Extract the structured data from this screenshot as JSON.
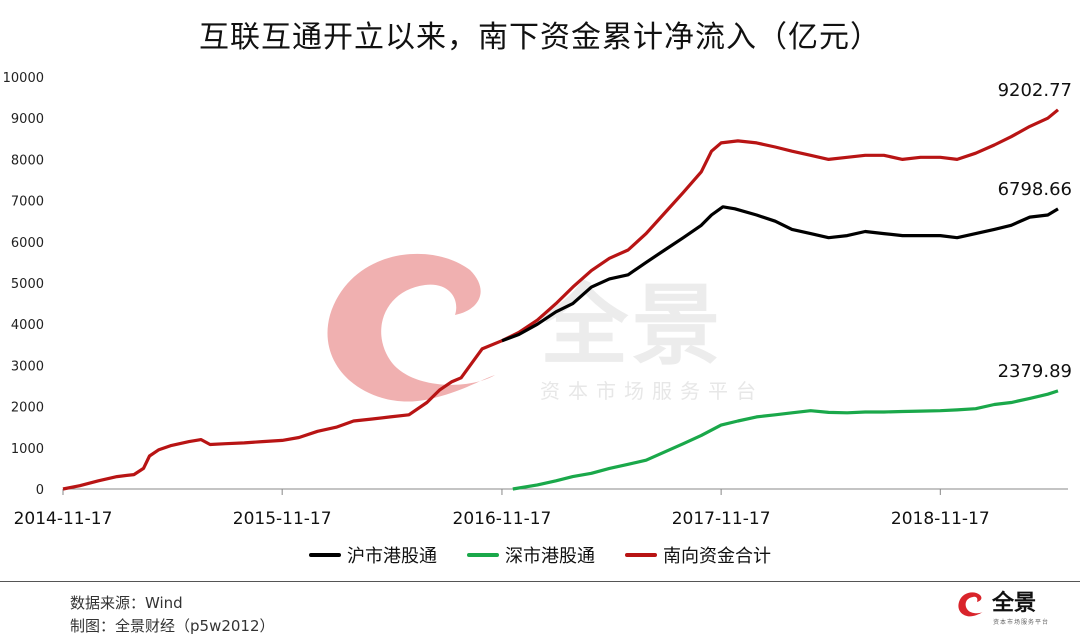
{
  "title": "互联互通开立以来，南下资金累计净流入（亿元）",
  "watermark": {
    "brand": "全景",
    "tagline": "资本市场服务平台"
  },
  "footer": {
    "source": "数据来源：Wind",
    "made_by": "制图：全景财经（p5w2012）"
  },
  "logo": {
    "text": "全景",
    "sub": "资本市场服务平台",
    "color": "#d9242b"
  },
  "chart_data": {
    "type": "line",
    "title": "互联互通开立以来，南下资金累计净流入（亿元）",
    "x_axis_type": "date",
    "x_ticks": [
      "2014-11-17",
      "2015-11-17",
      "2016-11-17",
      "2017-11-17",
      "2018-11-17"
    ],
    "ylim": [
      0,
      10000
    ],
    "y_ticks": [
      0,
      1000,
      2000,
      3000,
      4000,
      5000,
      6000,
      7000,
      8000,
      9000,
      10000
    ],
    "grid": false,
    "legend_position": "bottom",
    "end_labels": [
      "9202.77",
      "6798.66",
      "2379.89"
    ],
    "series": [
      {
        "name": "沪市港股通",
        "color": "#000000",
        "points": [
          [
            "2016-11-17",
            3600
          ],
          [
            "2016-12-15",
            3750
          ],
          [
            "2017-01-15",
            4000
          ],
          [
            "2017-02-15",
            4300
          ],
          [
            "2017-03-15",
            4500
          ],
          [
            "2017-04-15",
            4900
          ],
          [
            "2017-05-15",
            5100
          ],
          [
            "2017-06-15",
            5200
          ],
          [
            "2017-07-15",
            5500
          ],
          [
            "2017-08-15",
            5800
          ],
          [
            "2017-09-15",
            6100
          ],
          [
            "2017-10-15",
            6400
          ],
          [
            "2017-11-01",
            6650
          ],
          [
            "2017-11-20",
            6850
          ],
          [
            "2017-12-10",
            6800
          ],
          [
            "2018-01-15",
            6650
          ],
          [
            "2018-02-15",
            6500
          ],
          [
            "2018-03-15",
            6300
          ],
          [
            "2018-04-15",
            6200
          ],
          [
            "2018-05-15",
            6100
          ],
          [
            "2018-06-15",
            6150
          ],
          [
            "2018-07-15",
            6250
          ],
          [
            "2018-08-15",
            6200
          ],
          [
            "2018-09-15",
            6150
          ],
          [
            "2018-10-15",
            6150
          ],
          [
            "2018-11-17",
            6150
          ],
          [
            "2018-12-15",
            6100
          ],
          [
            "2019-01-15",
            6200
          ],
          [
            "2019-02-15",
            6300
          ],
          [
            "2019-03-15",
            6400
          ],
          [
            "2019-04-15",
            6600
          ],
          [
            "2019-05-15",
            6650
          ],
          [
            "2019-06-01",
            6798.66
          ]
        ]
      },
      {
        "name": "深市港股通",
        "color": "#1aa84a",
        "points": [
          [
            "2016-12-05",
            0
          ],
          [
            "2017-01-15",
            100
          ],
          [
            "2017-02-15",
            200
          ],
          [
            "2017-03-15",
            300
          ],
          [
            "2017-04-15",
            380
          ],
          [
            "2017-05-15",
            500
          ],
          [
            "2017-06-15",
            600
          ],
          [
            "2017-07-15",
            700
          ],
          [
            "2017-08-15",
            900
          ],
          [
            "2017-09-15",
            1100
          ],
          [
            "2017-10-15",
            1300
          ],
          [
            "2017-11-17",
            1550
          ],
          [
            "2017-12-15",
            1650
          ],
          [
            "2018-01-15",
            1750
          ],
          [
            "2018-02-15",
            1800
          ],
          [
            "2018-03-15",
            1850
          ],
          [
            "2018-04-15",
            1900
          ],
          [
            "2018-05-15",
            1860
          ],
          [
            "2018-06-15",
            1850
          ],
          [
            "2018-07-15",
            1870
          ],
          [
            "2018-08-15",
            1870
          ],
          [
            "2018-09-15",
            1880
          ],
          [
            "2018-10-15",
            1890
          ],
          [
            "2018-11-17",
            1900
          ],
          [
            "2018-12-15",
            1920
          ],
          [
            "2019-01-15",
            1950
          ],
          [
            "2019-02-15",
            2050
          ],
          [
            "2019-03-15",
            2100
          ],
          [
            "2019-04-15",
            2200
          ],
          [
            "2019-05-15",
            2300
          ],
          [
            "2019-06-01",
            2379.89
          ]
        ]
      },
      {
        "name": "南向资金合计",
        "color": "#b81414",
        "points": [
          [
            "2014-11-17",
            0
          ],
          [
            "2014-12-15",
            80
          ],
          [
            "2015-01-15",
            200
          ],
          [
            "2015-02-15",
            300
          ],
          [
            "2015-03-15",
            350
          ],
          [
            "2015-03-31",
            500
          ],
          [
            "2015-04-10",
            800
          ],
          [
            "2015-04-25",
            950
          ],
          [
            "2015-05-15",
            1050
          ],
          [
            "2015-06-15",
            1150
          ],
          [
            "2015-07-05",
            1200
          ],
          [
            "2015-07-20",
            1080
          ],
          [
            "2015-08-15",
            1100
          ],
          [
            "2015-09-15",
            1120
          ],
          [
            "2015-10-15",
            1150
          ],
          [
            "2015-11-17",
            1180
          ],
          [
            "2015-12-15",
            1250
          ],
          [
            "2016-01-15",
            1400
          ],
          [
            "2016-02-15",
            1500
          ],
          [
            "2016-03-15",
            1650
          ],
          [
            "2016-04-15",
            1700
          ],
          [
            "2016-05-15",
            1750
          ],
          [
            "2016-06-15",
            1800
          ],
          [
            "2016-07-15",
            2100
          ],
          [
            "2016-08-05",
            2400
          ],
          [
            "2016-08-25",
            2600
          ],
          [
            "2016-09-10",
            2700
          ],
          [
            "2016-09-25",
            3000
          ],
          [
            "2016-10-15",
            3400
          ],
          [
            "2016-11-17",
            3600
          ],
          [
            "2016-12-15",
            3800
          ],
          [
            "2017-01-15",
            4100
          ],
          [
            "2017-02-15",
            4500
          ],
          [
            "2017-03-15",
            4900
          ],
          [
            "2017-04-15",
            5300
          ],
          [
            "2017-05-15",
            5600
          ],
          [
            "2017-06-15",
            5800
          ],
          [
            "2017-07-15",
            6200
          ],
          [
            "2017-08-15",
            6700
          ],
          [
            "2017-09-15",
            7200
          ],
          [
            "2017-10-15",
            7700
          ],
          [
            "2017-11-01",
            8200
          ],
          [
            "2017-11-17",
            8400
          ],
          [
            "2017-12-15",
            8450
          ],
          [
            "2018-01-15",
            8400
          ],
          [
            "2018-02-15",
            8300
          ],
          [
            "2018-03-15",
            8200
          ],
          [
            "2018-04-15",
            8100
          ],
          [
            "2018-05-15",
            8000
          ],
          [
            "2018-06-15",
            8050
          ],
          [
            "2018-07-15",
            8100
          ],
          [
            "2018-08-15",
            8100
          ],
          [
            "2018-09-15",
            8000
          ],
          [
            "2018-10-15",
            8050
          ],
          [
            "2018-11-17",
            8050
          ],
          [
            "2018-12-15",
            8000
          ],
          [
            "2019-01-15",
            8150
          ],
          [
            "2019-02-15",
            8350
          ],
          [
            "2019-03-15",
            8550
          ],
          [
            "2019-04-15",
            8800
          ],
          [
            "2019-05-15",
            9000
          ],
          [
            "2019-06-01",
            9202.77
          ]
        ]
      }
    ]
  }
}
